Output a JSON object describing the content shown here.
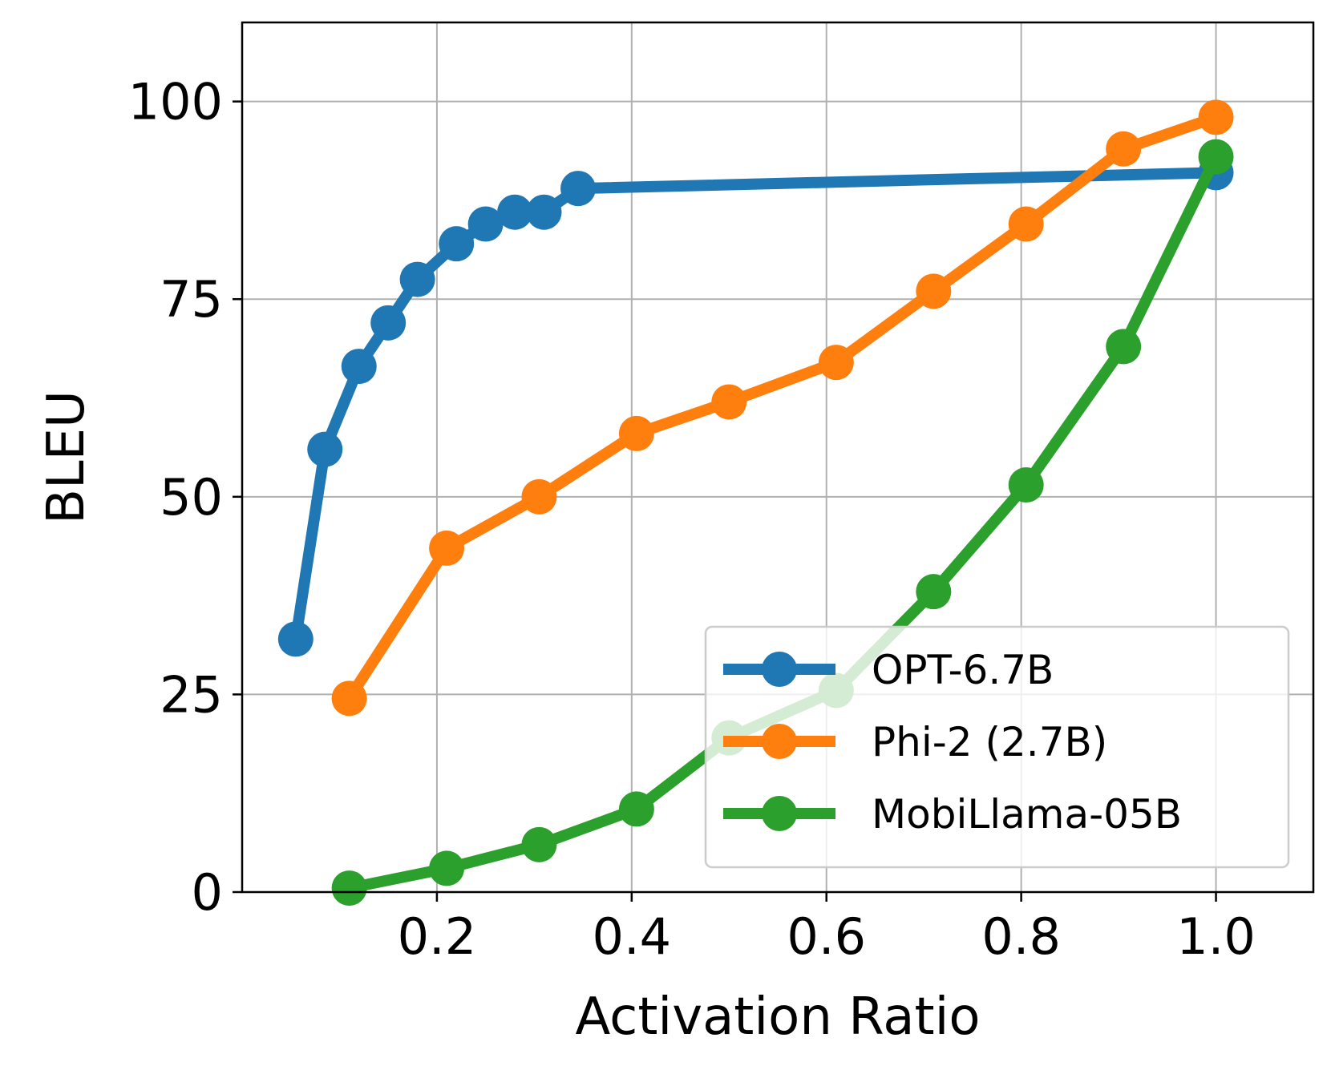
{
  "chart_data": {
    "type": "line",
    "xlabel": "Activation Ratio",
    "ylabel": "BLEU",
    "xlim": [
      0.0,
      1.1
    ],
    "ylim": [
      0,
      110
    ],
    "xticks": [
      0.2,
      0.4,
      0.6,
      0.8,
      1.0
    ],
    "xtick_labels": [
      "0.2",
      "0.4",
      "0.6",
      "0.8",
      "1.0"
    ],
    "yticks": [
      0,
      25,
      50,
      75,
      100
    ],
    "ytick_labels": [
      "0",
      "25",
      "50",
      "75",
      "100"
    ],
    "grid": true,
    "legend_position": "lower-right",
    "series": [
      {
        "name": "OPT-6.7B",
        "color": "#1f77b4",
        "x": [
          0.055,
          0.085,
          0.12,
          0.15,
          0.18,
          0.22,
          0.25,
          0.28,
          0.31,
          0.345,
          1.0
        ],
        "y": [
          32.0,
          56.0,
          66.5,
          72.0,
          77.5,
          82.0,
          84.5,
          86.0,
          86.0,
          89.0,
          91.0
        ]
      },
      {
        "name": "Phi-2 (2.7B)",
        "color": "#ff7f0e",
        "x": [
          0.11,
          0.21,
          0.305,
          0.405,
          0.5,
          0.61,
          0.71,
          0.805,
          0.905,
          1.0
        ],
        "y": [
          24.5,
          43.5,
          50.0,
          58.0,
          62.0,
          67.0,
          76.0,
          84.5,
          94.0,
          98.0
        ]
      },
      {
        "name": "MobiLlama-05B",
        "color": "#2ca02c",
        "x": [
          0.11,
          0.21,
          0.305,
          0.405,
          0.5,
          0.61,
          0.71,
          0.805,
          0.905,
          1.0
        ],
        "y": [
          0.5,
          3.0,
          6.0,
          10.5,
          19.5,
          25.5,
          38.0,
          51.5,
          69.0,
          93.0
        ]
      }
    ]
  }
}
